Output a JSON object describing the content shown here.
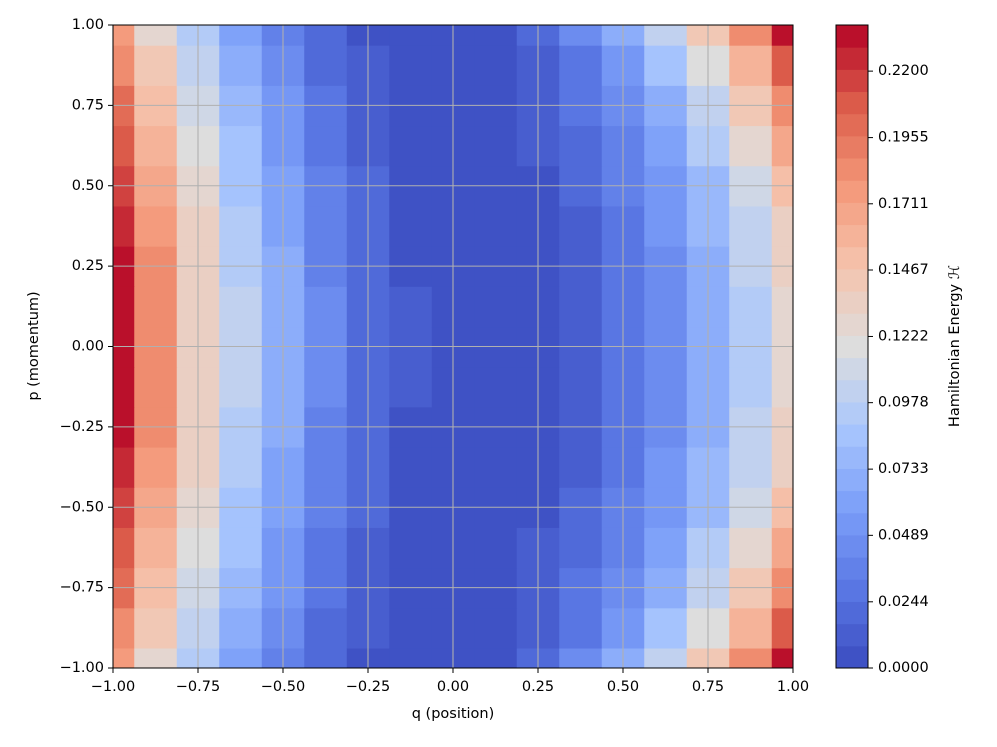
{
  "chart_data": {
    "type": "contourf",
    "xlabel": "q (position)",
    "ylabel": "p (momentum)",
    "colorbar_label": "Hamiltonian Energy ℋ",
    "colormap": "coolwarm",
    "grid": true,
    "bands": 29,
    "xlim": [
      -1,
      1
    ],
    "ylim": [
      -1,
      1
    ],
    "clim": [
      0,
      0.237
    ],
    "xticks": [
      {
        "value": -1,
        "label": "−1.00"
      },
      {
        "value": -0.75,
        "label": "−0.75"
      },
      {
        "value": -0.5,
        "label": "−0.50"
      },
      {
        "value": -0.25,
        "label": "−0.25"
      },
      {
        "value": 0,
        "label": "0.00"
      },
      {
        "value": 0.25,
        "label": "0.25"
      },
      {
        "value": 0.5,
        "label": "0.50"
      },
      {
        "value": 0.75,
        "label": "0.75"
      },
      {
        "value": 1,
        "label": "1.00"
      }
    ],
    "yticks": [
      {
        "value": -1,
        "label": "−1.00"
      },
      {
        "value": -0.75,
        "label": "−0.75"
      },
      {
        "value": -0.5,
        "label": "−0.50"
      },
      {
        "value": -0.25,
        "label": "−0.25"
      },
      {
        "value": 0,
        "label": "0.00"
      },
      {
        "value": 0.25,
        "label": "0.25"
      },
      {
        "value": 0.5,
        "label": "0.50"
      },
      {
        "value": 0.75,
        "label": "0.75"
      },
      {
        "value": 1,
        "label": "1.00"
      }
    ],
    "cticks": [
      {
        "value": 0,
        "label": "0.0000"
      },
      0.0244,
      0.0489,
      0.0733,
      0.0978,
      0.1222,
      0.1467,
      0.1711,
      0.1955,
      {
        "value": 0.22,
        "label": "0.2200"
      }
    ],
    "x": [
      -1,
      -0.875,
      -0.75,
      -0.625,
      -0.5,
      -0.375,
      -0.25,
      -0.125,
      0,
      0.125,
      0.25,
      0.375,
      0.5,
      0.625,
      0.75,
      0.875,
      1
    ],
    "y": [
      -1,
      -0.875,
      -0.75,
      -0.625,
      -0.5,
      -0.375,
      -0.25,
      -0.125,
      0,
      0.125,
      0.25,
      0.375,
      0.5,
      0.625,
      0.75,
      0.875,
      1
    ],
    "z": [
      [
        0.1743,
        0.1306,
        0.0932,
        0.0621,
        0.0373,
        0.0187,
        0.0065,
        0.0006,
        0.001,
        0.0079,
        0.0213,
        0.0412,
        0.0676,
        0.1005,
        0.1399,
        0.1857,
        0.2381
      ],
      [
        0.1877,
        0.1422,
        0.1031,
        0.0702,
        0.0436,
        0.0233,
        0.0093,
        0.0016,
        0.0002,
        0.0049,
        0.0157,
        0.0326,
        0.0555,
        0.0844,
        0.1194,
        0.1605,
        0.2076
      ],
      [
        0.1997,
        0.1527,
        0.112,
        0.0776,
        0.0495,
        0.0277,
        0.0122,
        0.0029,
        0,
        0.003,
        0.0118,
        0.0262,
        0.0463,
        0.072,
        0.1035,
        0.1406,
        0.1834
      ],
      [
        0.2102,
        0.1619,
        0.1199,
        0.0842,
        0.0548,
        0.0317,
        0.0148,
        0.0043,
        0.0001,
        0.0018,
        0.009,
        0.0214,
        0.0393,
        0.0624,
        0.091,
        0.1249,
        0.1641
      ],
      [
        0.219,
        0.1696,
        0.1266,
        0.0898,
        0.0593,
        0.0351,
        0.0172,
        0.0057,
        0.0004,
        0.0011,
        0.007,
        0.018,
        0.0341,
        0.0553,
        0.0816,
        0.113,
        0.1494
      ],
      [
        0.2259,
        0.1757,
        0.1318,
        0.0942,
        0.0629,
        0.0379,
        0.0192,
        0.0068,
        0.0007,
        0.0007,
        0.0057,
        0.0156,
        0.0304,
        0.0501,
        0.0747,
        0.1042,
        0.1385
      ],
      [
        0.231,
        0.1802,
        0.1357,
        0.0975,
        0.0656,
        0.04,
        0.0207,
        0.0077,
        0.001,
        0.0004,
        0.0049,
        0.0141,
        0.028,
        0.0467,
        0.0701,
        0.0982,
        0.1311
      ],
      [
        0.234,
        0.1829,
        0.138,
        0.0995,
        0.0672,
        0.0413,
        0.0216,
        0.0083,
        0.0012,
        0.0003,
        0.0044,
        0.0132,
        0.0266,
        0.0446,
        0.0673,
        0.0947,
        0.1267
      ],
      [
        0.235,
        0.1838,
        0.1388,
        0.1001,
        0.0678,
        0.0417,
        0.0219,
        0.0085,
        0.0013,
        0.0003,
        0.0043,
        0.0129,
        0.0261,
        0.044,
        0.0664,
        0.0935,
        0.1253
      ],
      [
        0.234,
        0.1829,
        0.138,
        0.0995,
        0.0672,
        0.0413,
        0.0216,
        0.0083,
        0.0012,
        0.0003,
        0.0044,
        0.0132,
        0.0266,
        0.0446,
        0.0673,
        0.0947,
        0.1267
      ],
      [
        0.231,
        0.1802,
        0.1357,
        0.0975,
        0.0656,
        0.04,
        0.0207,
        0.0077,
        0.001,
        0.0004,
        0.0049,
        0.0141,
        0.028,
        0.0467,
        0.0701,
        0.0982,
        0.1311
      ],
      [
        0.2259,
        0.1757,
        0.1318,
        0.0942,
        0.0629,
        0.0379,
        0.0192,
        0.0068,
        0.0007,
        0.0007,
        0.0057,
        0.0156,
        0.0304,
        0.0501,
        0.0747,
        0.1042,
        0.1385
      ],
      [
        0.219,
        0.1696,
        0.1266,
        0.0898,
        0.0593,
        0.0351,
        0.0172,
        0.0057,
        0.0004,
        0.0011,
        0.007,
        0.018,
        0.0341,
        0.0553,
        0.0816,
        0.113,
        0.1494
      ],
      [
        0.2102,
        0.1619,
        0.1199,
        0.0842,
        0.0548,
        0.0317,
        0.0148,
        0.0043,
        0.0001,
        0.0018,
        0.009,
        0.0214,
        0.0393,
        0.0624,
        0.091,
        0.1249,
        0.1641
      ],
      [
        0.1997,
        0.1527,
        0.112,
        0.0776,
        0.0495,
        0.0277,
        0.0122,
        0.0029,
        0,
        0.003,
        0.0118,
        0.0262,
        0.0463,
        0.072,
        0.1035,
        0.1406,
        0.1834
      ],
      [
        0.1877,
        0.1422,
        0.1031,
        0.0702,
        0.0436,
        0.0233,
        0.0093,
        0.0016,
        0.0002,
        0.0049,
        0.0157,
        0.0326,
        0.0555,
        0.0844,
        0.1194,
        0.1605,
        0.2076
      ],
      [
        0.1743,
        0.1306,
        0.0932,
        0.0621,
        0.0373,
        0.0187,
        0.0065,
        0.0006,
        0.001,
        0.0079,
        0.0213,
        0.0412,
        0.0676,
        0.1005,
        0.1399,
        0.1857,
        0.2381
      ]
    ]
  }
}
